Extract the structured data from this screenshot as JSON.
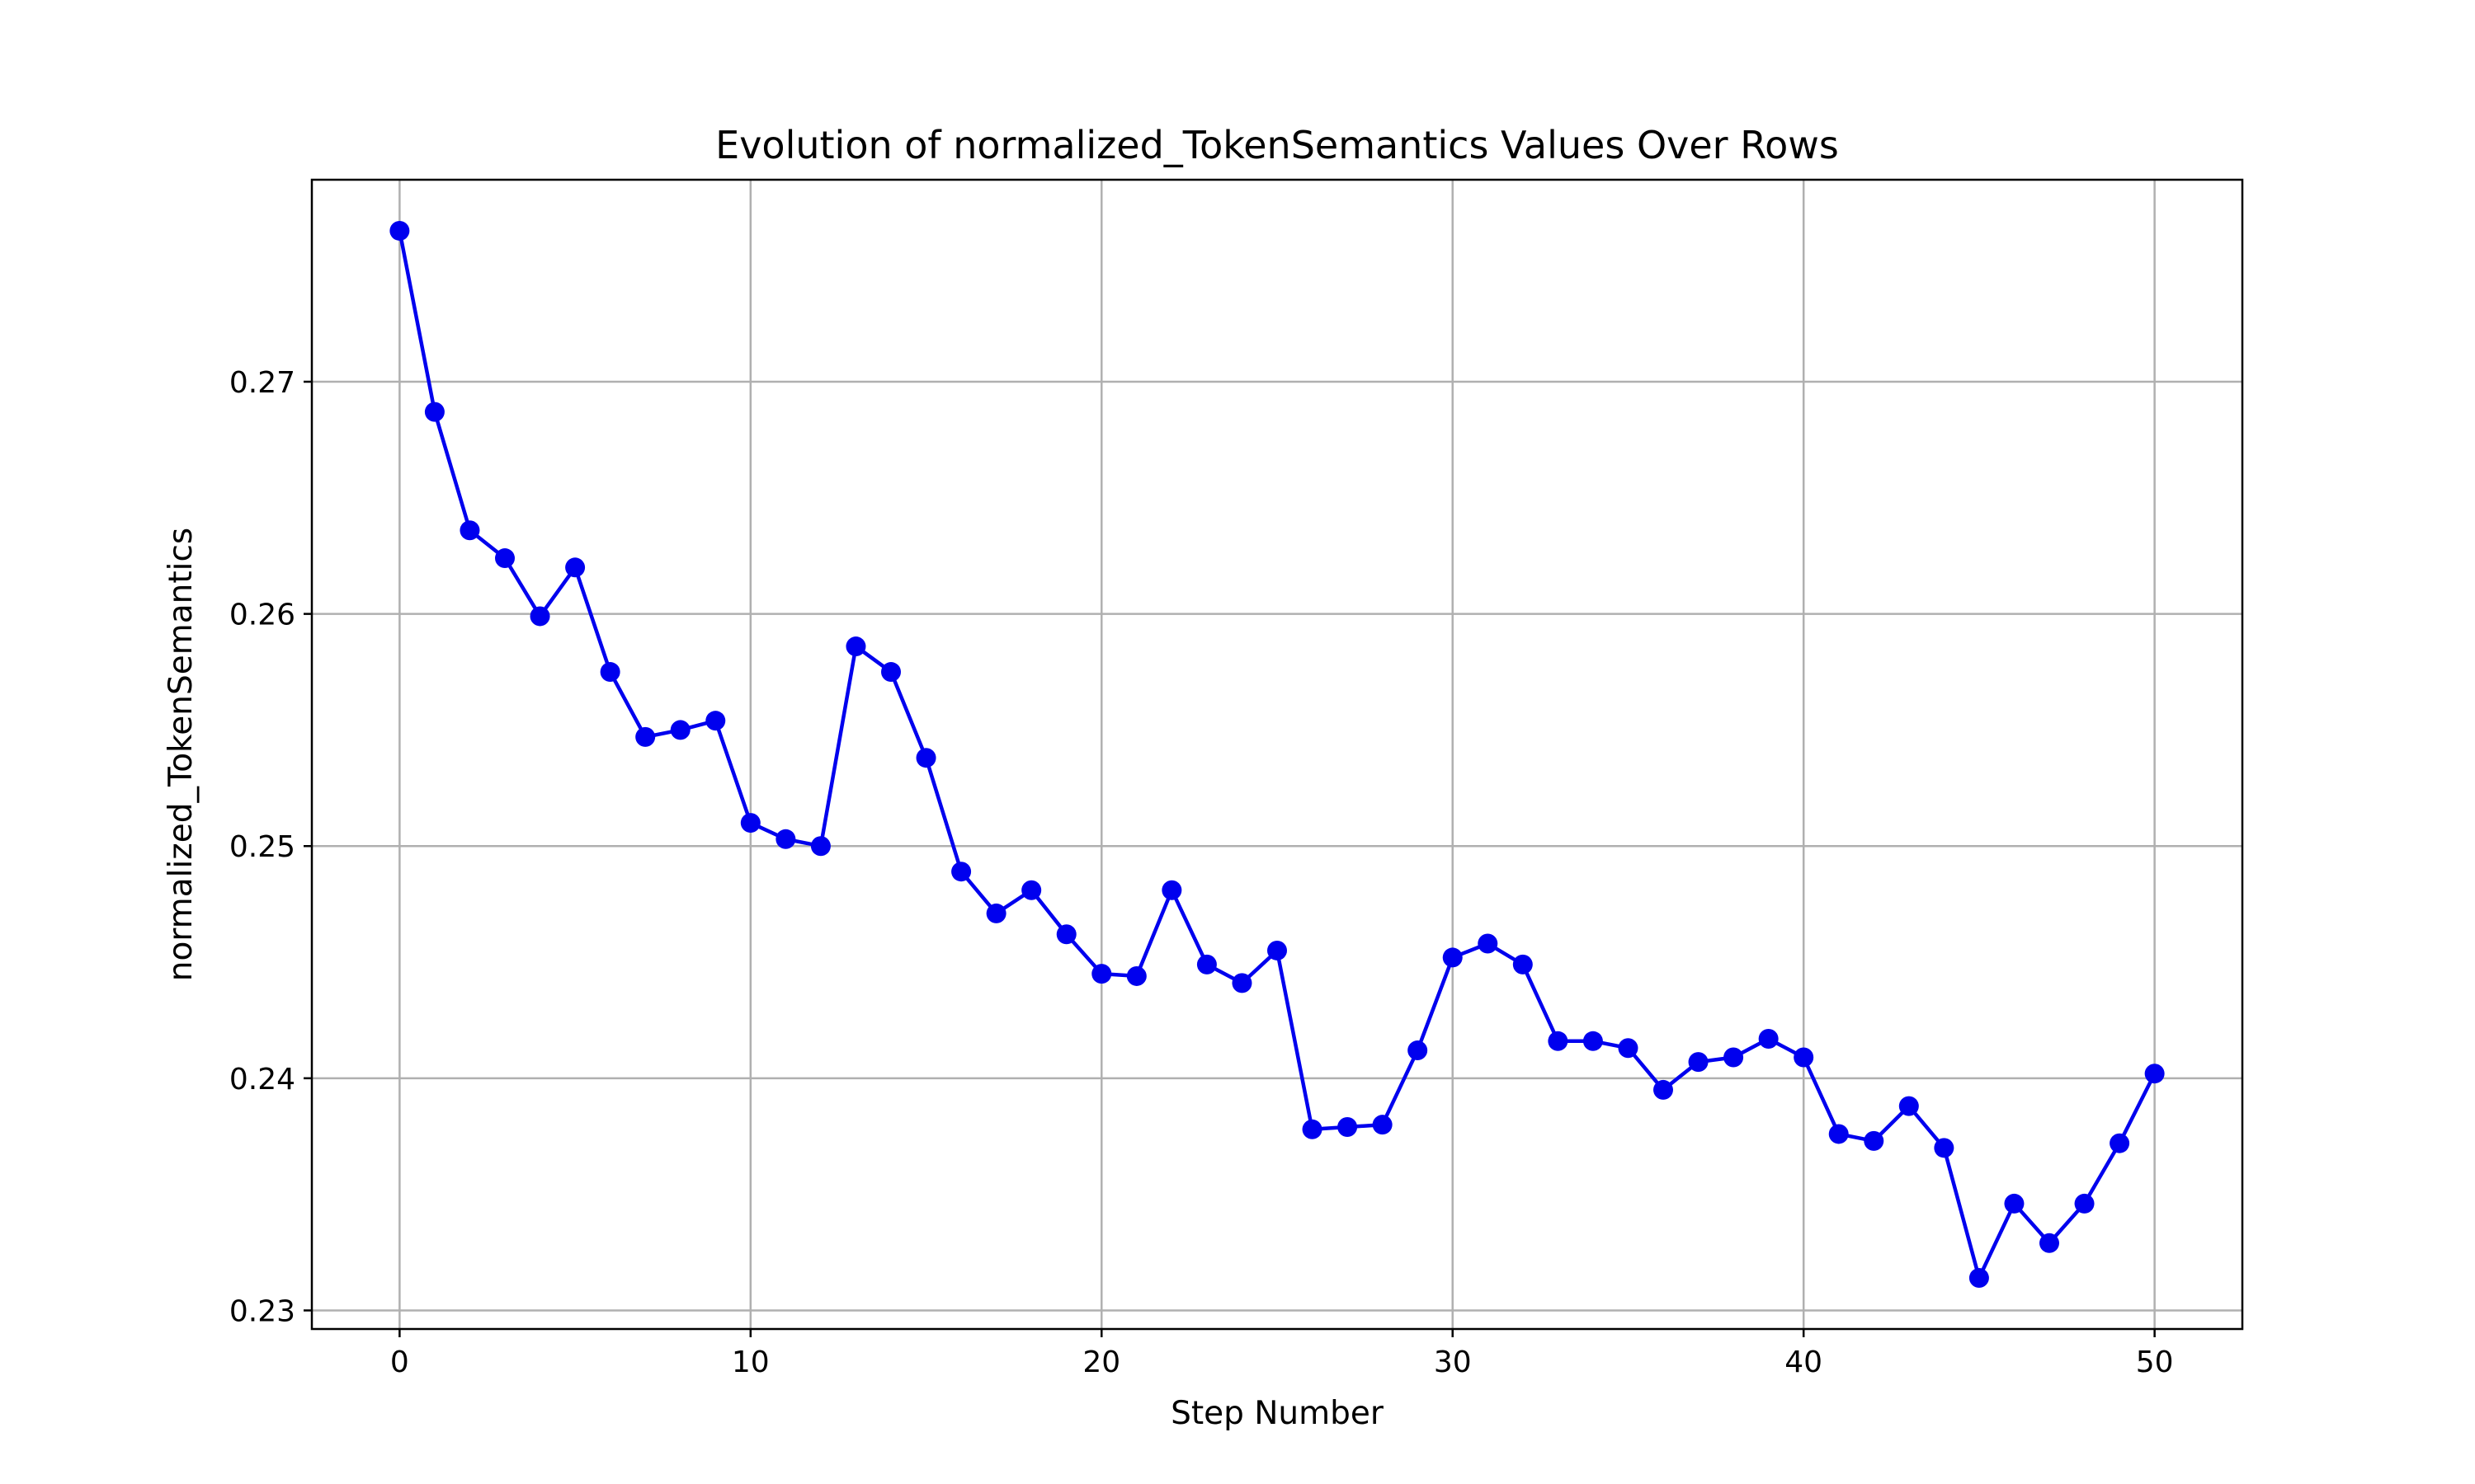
{
  "chart_data": {
    "type": "line",
    "title": "Evolution of normalized_TokenSemantics Values Over Rows",
    "xlabel": "Step Number",
    "ylabel": "normalized_TokenSemantics",
    "xlim": [
      -2.5,
      52.5
    ],
    "ylim": [
      0.2292,
      0.2787
    ],
    "xticks": [
      0,
      10,
      20,
      30,
      40,
      50
    ],
    "xtick_labels": [
      "0",
      "10",
      "20",
      "30",
      "40",
      "50"
    ],
    "yticks": [
      0.23,
      0.24,
      0.25,
      0.26,
      0.27
    ],
    "ytick_labels": [
      "0.23",
      "0.24",
      "0.25",
      "0.26",
      "0.27"
    ],
    "grid": true,
    "legend": "none",
    "series": [
      {
        "color": "#0000ee",
        "marker": "circle",
        "x": [
          0,
          1,
          2,
          3,
          4,
          5,
          6,
          7,
          8,
          9,
          10,
          11,
          12,
          13,
          14,
          15,
          16,
          17,
          18,
          19,
          20,
          21,
          22,
          23,
          24,
          25,
          26,
          27,
          28,
          29,
          30,
          31,
          32,
          33,
          34,
          35,
          36,
          37,
          38,
          39,
          40,
          41,
          42,
          43,
          44,
          45,
          46,
          47,
          48,
          49,
          50
        ],
        "values": [
          0.2765,
          0.2687,
          0.2636,
          0.2624,
          0.2599,
          0.262,
          0.2575,
          0.2547,
          0.255,
          0.2554,
          0.251,
          0.2503,
          0.25,
          0.2586,
          0.2575,
          0.2538,
          0.2489,
          0.2471,
          0.2481,
          0.2462,
          0.2445,
          0.2444,
          0.2481,
          0.2449,
          0.2441,
          0.2455,
          0.2378,
          0.2379,
          0.238,
          0.2412,
          0.2452,
          0.2458,
          0.2449,
          0.2416,
          0.2416,
          0.2413,
          0.2395,
          0.2407,
          0.2409,
          0.2417,
          0.2409,
          0.2376,
          0.2373,
          0.2388,
          0.237,
          0.2314,
          0.2346,
          0.2329,
          0.2346,
          0.2372,
          0.2402
        ]
      }
    ]
  }
}
